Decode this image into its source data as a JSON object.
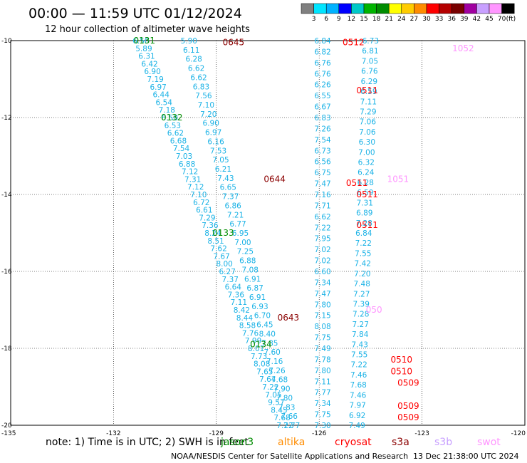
{
  "header": {
    "title": "00:00 — 11:59 UTC 01/12/2024",
    "subtitle": "12 hour collection of altimeter wave heights"
  },
  "scale": {
    "labels": [
      "3",
      "6",
      "9",
      "12",
      "15",
      "18",
      "21",
      "24",
      "27",
      "30",
      "33",
      "36",
      "39",
      "42",
      "45",
      "70"
    ],
    "unit": "(ft)",
    "colors": [
      "#808080",
      "#00e5ff",
      "#00b2ff",
      "#0000ff",
      "#00c8c8",
      "#00b400",
      "#008c00",
      "#ffff00",
      "#ffcc00",
      "#ff8c00",
      "#ff0000",
      "#b40000",
      "#780000",
      "#a000a0",
      "#c8a0ff",
      "#ff96ff",
      "#000000"
    ]
  },
  "footer": {
    "note": "note: 1) Time is in UTC; 2) SWH is in feet",
    "credit": "NOAA/NESDIS Center for Satellite Applications and Research",
    "timestamp": "13 Dec 21:38:00 UTC 2024"
  },
  "satellites": [
    {
      "name": "jason3",
      "color": "#008c00"
    },
    {
      "name": "altika",
      "color": "#ff8c00"
    },
    {
      "name": "cryosat",
      "color": "#ff0000"
    },
    {
      "name": "s3a",
      "color": "#8b0000"
    },
    {
      "name": "s3b",
      "color": "#c8a0ff"
    },
    {
      "name": "swot",
      "color": "#ff96ff"
    }
  ],
  "chart_data": {
    "type": "scatter",
    "title": "00:00 — 11:59 UTC 01/12/2024",
    "xlim": [
      -135,
      -120
    ],
    "ylim": [
      -20,
      -10
    ],
    "x_ticks": [
      -135,
      -132,
      -129,
      -126,
      -123,
      -120
    ],
    "y_ticks": [
      -10,
      -12,
      -14,
      -16,
      -18,
      -20
    ],
    "grid": true,
    "value_color": "#1ab2e6",
    "pass_labels": [
      {
        "x": -131.1,
        "y": -10.0,
        "text": "0131",
        "color": "#008c00"
      },
      {
        "x": -128.5,
        "y": -10.05,
        "text": "0645",
        "color": "#8b0000"
      },
      {
        "x": -125.0,
        "y": -10.05,
        "text": "0512",
        "color": "#ff0000"
      },
      {
        "x": -121.8,
        "y": -10.2,
        "text": "1052",
        "color": "#ff96ff"
      },
      {
        "x": -130.3,
        "y": -12.0,
        "text": "0132",
        "color": "#008c00"
      },
      {
        "x": -124.6,
        "y": -11.3,
        "text": "0511",
        "color": "#ff0000"
      },
      {
        "x": -127.3,
        "y": -13.6,
        "text": "0644",
        "color": "#8b0000"
      },
      {
        "x": -123.7,
        "y": -13.6,
        "text": "1051",
        "color": "#ff96ff"
      },
      {
        "x": -124.9,
        "y": -13.7,
        "text": "0511",
        "color": "#ff0000"
      },
      {
        "x": -124.6,
        "y": -14.0,
        "text": "0511",
        "color": "#ff0000"
      },
      {
        "x": -128.8,
        "y": -15.0,
        "text": "0133",
        "color": "#008c00"
      },
      {
        "x": -124.6,
        "y": -14.8,
        "text": "0511",
        "color": "#ff0000"
      },
      {
        "x": -124.4,
        "y": -17.0,
        "text": "050",
        "color": "#ff96ff"
      },
      {
        "x": -126.9,
        "y": -17.2,
        "text": "0643",
        "color": "#8b0000"
      },
      {
        "x": -127.7,
        "y": -17.9,
        "text": "0134",
        "color": "#008c00"
      },
      {
        "x": -123.6,
        "y": -18.3,
        "text": "0510",
        "color": "#ff0000"
      },
      {
        "x": -123.6,
        "y": -18.6,
        "text": "0510",
        "color": "#ff0000"
      },
      {
        "x": -123.4,
        "y": -18.9,
        "text": "0509",
        "color": "#ff0000"
      },
      {
        "x": -123.4,
        "y": -19.5,
        "text": "0509",
        "color": "#ff0000"
      },
      {
        "x": -123.4,
        "y": -19.8,
        "text": "0509",
        "color": "#ff0000"
      }
    ],
    "series": [
      {
        "start": [
          -131.2,
          -10.0
        ],
        "end": [
          -127.0,
          -20.0
        ],
        "values": [
          "6.50",
          "5.89",
          "6.31",
          "6.42",
          "6.90",
          "7.19",
          "6.97",
          "6.44",
          "6.54",
          "7.18",
          "6.58",
          "6.53",
          "6.62",
          "6.68",
          "7.54",
          "7.03",
          "6.88",
          "7.12",
          "7.31",
          "7.12",
          "7.10",
          "6.72",
          "6.61",
          "7.29",
          "7.36",
          "8.24",
          "8.51",
          "7.62",
          "7.67",
          "8.00",
          "6.27",
          "7.37",
          "6.64",
          "7.36",
          "7.11",
          "8.42",
          "8.44",
          "8.58",
          "7.76",
          "7.99",
          "8.01",
          "7.73",
          "8.08",
          "7.65",
          "7.64",
          "7.22",
          "7.05",
          "9.57",
          "8.45",
          "7.68",
          "7.22"
        ]
      },
      {
        "start": [
          -129.8,
          -10.0
        ],
        "end": [
          -126.8,
          -20.0
        ],
        "values": [
          "5.90",
          "6.11",
          "6.28",
          "6.62",
          "6.62",
          "6.83",
          "7.56",
          "7.10",
          "7.20",
          "6.90",
          "6.97",
          "6.16",
          "7.53",
          "7.05",
          "6.21",
          "7.43",
          "6.65",
          "7.37",
          "6.86",
          "7.21",
          "6.77",
          "6.95",
          "7.00",
          "7.25",
          "6.88",
          "7.08",
          "6.91",
          "6.87",
          "6.91",
          "6.93",
          "6.70",
          "6.45",
          "8.40",
          "7.85",
          "7.60",
          "7.16",
          "7.26",
          "7.68",
          "7.90",
          "7.80",
          "7.83",
          "7.66",
          "7.77"
        ]
      },
      {
        "start": [
          -125.9,
          -10.0
        ],
        "end": [
          -125.9,
          -20.0
        ],
        "values": [
          "6.84",
          "6.82",
          "6.76",
          "6.76",
          "6.26",
          "6.55",
          "6.67",
          "6.83",
          "7.26",
          "7.54",
          "6.73",
          "6.56",
          "6.75",
          "7.47",
          "7.16",
          "7.71",
          "6.62",
          "7.22",
          "7.95",
          "7.02",
          "7.02",
          "6.60",
          "7.34",
          "7.47",
          "7.80",
          "7.15",
          "8.08",
          "7.75",
          "7.49",
          "7.78",
          "7.80",
          "7.11",
          "7.77",
          "7.34",
          "7.75",
          "7.30"
        ]
      },
      {
        "start": [
          -124.5,
          -10.0
        ],
        "end": [
          -124.9,
          -20.0
        ],
        "values": [
          "6.73",
          "6.81",
          "7.05",
          "6.76",
          "6.29",
          "6.59",
          "7.11",
          "7.29",
          "7.06",
          "7.06",
          "6.30",
          "7.00",
          "6.32",
          "6.24",
          "6.28",
          "6.59",
          "7.31",
          "6.89",
          "7.28",
          "6.84",
          "7.22",
          "7.55",
          "7.42",
          "7.20",
          "7.48",
          "7.27",
          "7.39",
          "7.28",
          "7.27",
          "7.84",
          "7.43",
          "7.55",
          "7.22",
          "7.46",
          "7.68",
          "7.46",
          "7.97",
          "6.92",
          "7.49"
        ]
      }
    ]
  }
}
